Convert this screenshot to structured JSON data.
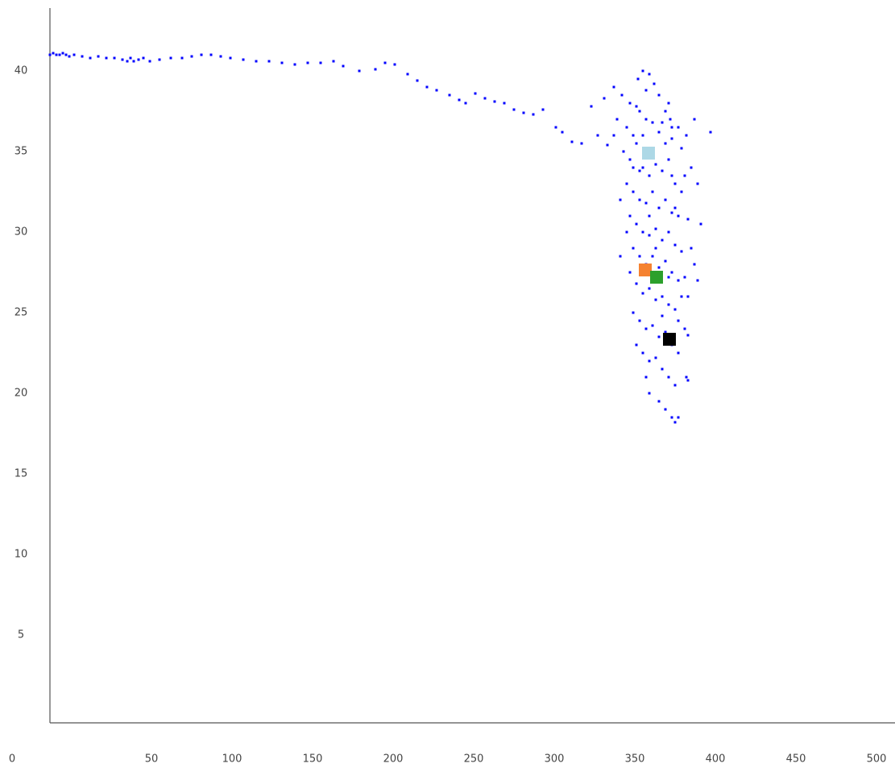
{
  "chart_data": {
    "type": "scatter",
    "xlim": [
      0,
      524
    ],
    "ylim": [
      0,
      44
    ],
    "xticks": [
      0,
      50,
      100,
      150,
      200,
      250,
      300,
      350,
      400,
      450,
      500
    ],
    "yticks": [
      5,
      10,
      15,
      20,
      25,
      30,
      35,
      40
    ],
    "grid": false,
    "series": [
      {
        "color": "#0000ff",
        "x": [
          0,
          2,
          4,
          6,
          8,
          10,
          12,
          15,
          20,
          25,
          30,
          35,
          40,
          45,
          48,
          50,
          52,
          55,
          58,
          62,
          68,
          75,
          82,
          88,
          94,
          100,
          106,
          112,
          120,
          128,
          136,
          144,
          152,
          160,
          168,
          176,
          182,
          192,
          202,
          208,
          214,
          222,
          228,
          234,
          240,
          248,
          254,
          258,
          264,
          270,
          276,
          282,
          288,
          294,
          300,
          306,
          314,
          318,
          324,
          330,
          336,
          340,
          344,
          350,
          355,
          360,
          365,
          368,
          372,
          375,
          378,
          382,
          385,
          390,
          395,
          400,
          410,
          352,
          358,
          362,
          366,
          370,
          374,
          378,
          382,
          386,
          392,
          356,
          360,
          364,
          368,
          372,
          376,
          380,
          384,
          388,
          394,
          358,
          362,
          366,
          370,
          374,
          378,
          382,
          386,
          390,
          396,
          360,
          364,
          368,
          372,
          376,
          380,
          384,
          388,
          392,
          404,
          362,
          366,
          370,
          374,
          378,
          382,
          386,
          390,
          394,
          402,
          354,
          360,
          364,
          368,
          372,
          376,
          380,
          384,
          388,
          392,
          362,
          366,
          370,
          374,
          378,
          382,
          386,
          390,
          396,
          364,
          368,
          372,
          376,
          380,
          384,
          388,
          395,
          396,
          372,
          378,
          382,
          386,
          388,
          390,
          370,
          366,
          374,
          380,
          384,
          370,
          362,
          376,
          380,
          388,
          392,
          398,
          400,
          396,
          358,
          354,
          386,
          364,
          372,
          376,
          384,
          390,
          394,
          368,
          386,
          398,
          402,
          350,
          346
        ],
        "values": [
          41,
          41.1,
          41,
          41,
          41.1,
          41,
          40.9,
          41,
          40.9,
          40.8,
          40.9,
          40.8,
          40.8,
          40.7,
          40.6,
          40.8,
          40.6,
          40.7,
          40.8,
          40.6,
          40.7,
          40.8,
          40.8,
          40.9,
          41,
          41,
          40.9,
          40.8,
          40.7,
          40.6,
          40.6,
          40.5,
          40.4,
          40.5,
          40.5,
          40.6,
          40.3,
          40,
          40.1,
          40.5,
          40.4,
          39.8,
          39.4,
          39,
          38.8,
          38.5,
          38.2,
          38,
          38.6,
          38.3,
          38.1,
          38,
          37.6,
          37.4,
          37.3,
          37.6,
          36.5,
          36.2,
          35.6,
          35.5,
          37.8,
          36,
          38.3,
          39,
          38.5,
          38,
          39.5,
          40,
          39.8,
          39.2,
          38.5,
          37.5,
          37,
          36.5,
          36,
          37,
          36.2,
          37,
          36.5,
          36,
          37.5,
          37,
          36.8,
          36.2,
          35.5,
          35.8,
          35.2,
          35,
          34.5,
          35.5,
          34,
          33.5,
          34.2,
          33.8,
          34.5,
          33,
          33.5,
          33,
          32.5,
          32,
          31.8,
          32.5,
          31.5,
          32,
          31.2,
          31,
          30.8,
          31,
          30.5,
          30,
          29.8,
          30.2,
          29.5,
          30,
          29.2,
          28.8,
          30.5,
          29,
          28.5,
          28,
          28.5,
          27.8,
          28.2,
          27.5,
          27,
          27.2,
          27,
          28.5,
          27.5,
          26.8,
          26.2,
          26.5,
          25.8,
          26,
          25.5,
          25.2,
          26,
          25,
          24.5,
          24,
          24.2,
          23.5,
          23.8,
          23,
          22.5,
          23.6,
          23,
          22.5,
          22,
          22.2,
          21.5,
          21,
          20.5,
          21,
          20.8,
          20,
          19.5,
          19,
          18.5,
          18.2,
          18.5,
          21,
          33.8,
          35.2,
          36.8,
          38,
          38.8,
          34,
          27,
          24.8,
          31.5,
          32.5,
          29,
          28,
          26,
          30,
          32,
          33.5,
          37.8,
          31,
          29,
          27.2,
          24.5,
          24,
          36,
          36.5,
          34,
          33,
          36,
          35.4
        ]
      },
      {
        "color": "#add8e6",
        "x": [
          371.5
        ],
        "values": [
          34.9
        ]
      },
      {
        "color": "#f58231",
        "x": [
          369.5
        ],
        "values": [
          27.65
        ]
      },
      {
        "color": "#2ca02c",
        "x": [
          376.5
        ],
        "values": [
          27.2
        ]
      },
      {
        "color": "#000000",
        "x": [
          384.5
        ],
        "values": [
          23.35
        ]
      }
    ]
  }
}
